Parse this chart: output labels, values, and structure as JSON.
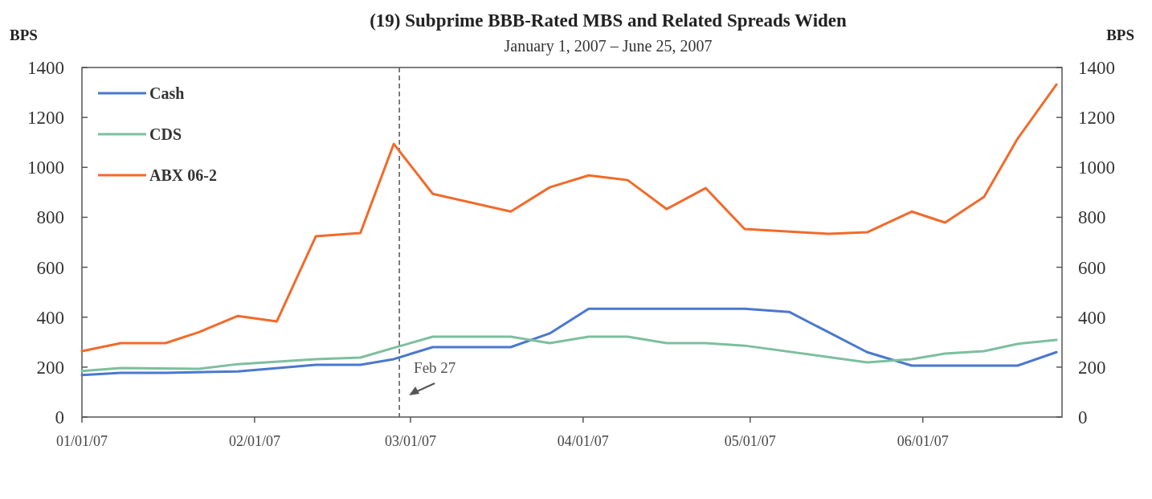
{
  "chart_data": {
    "type": "line",
    "title": "(19) Subprime BBB-Rated MBS and Related Spreads Widen",
    "subtitle": "January 1, 2007 – June 25, 2007",
    "ylabel": "BPS",
    "y2label": "BPS",
    "xlim": [
      "2007-01-01",
      "2007-06-26"
    ],
    "xticks": [
      {
        "value": "2007-01-01",
        "label": "01/01/07"
      },
      {
        "value": "2007-02-01",
        "label": "02/01/07"
      },
      {
        "value": "2007-03-01",
        "label": "03/01/07"
      },
      {
        "value": "2007-04-01",
        "label": "04/01/07"
      },
      {
        "value": "2007-05-01",
        "label": "05/01/07"
      },
      {
        "value": "2007-06-01",
        "label": "06/01/07"
      }
    ],
    "ylim": [
      0,
      1400
    ],
    "yticks": [
      0,
      200,
      400,
      600,
      800,
      1000,
      1200,
      1400
    ],
    "y2lim": [
      0,
      1400
    ],
    "y2ticks": [
      0,
      200,
      400,
      600,
      800,
      1000,
      1200,
      1400
    ],
    "legend": "top left",
    "grid": false,
    "line_style": "solid",
    "ref_lines": [
      {
        "axis": "x",
        "value": "2007-02-27",
        "label": "Feb 27",
        "line_style": "dashed",
        "color": "#555555"
      }
    ],
    "series": [
      {
        "name": "Cash",
        "color": "#4a78d0",
        "x": [
          "2007-01-01",
          "2007-01-08",
          "2007-01-16",
          "2007-01-29",
          "2007-02-12",
          "2007-02-20",
          "2007-02-26",
          "2007-03-05",
          "2007-03-19",
          "2007-03-26",
          "2007-04-02",
          "2007-04-30",
          "2007-05-08",
          "2007-05-22",
          "2007-05-30",
          "2007-06-18",
          "2007-06-25"
        ],
        "values": [
          168,
          177,
          177,
          183,
          209,
          209,
          232,
          280,
          280,
          335,
          434,
          434,
          421,
          260,
          206,
          206,
          260
        ]
      },
      {
        "name": "CDS",
        "color": "#7dbf9e",
        "x": [
          "2007-01-01",
          "2007-01-08",
          "2007-01-22",
          "2007-01-29",
          "2007-02-12",
          "2007-02-20",
          "2007-02-26",
          "2007-03-05",
          "2007-03-19",
          "2007-03-26",
          "2007-04-02",
          "2007-04-09",
          "2007-04-16",
          "2007-04-23",
          "2007-04-30",
          "2007-05-22",
          "2007-05-30",
          "2007-06-05",
          "2007-06-12",
          "2007-06-18",
          "2007-06-25"
        ],
        "values": [
          184,
          196,
          193,
          212,
          232,
          238,
          277,
          322,
          322,
          296,
          322,
          322,
          296,
          296,
          286,
          219,
          232,
          254,
          264,
          293,
          309
        ]
      },
      {
        "name": "ABX 06-2",
        "color": "#f26a2a",
        "x": [
          "2007-01-01",
          "2007-01-08",
          "2007-01-16",
          "2007-01-22",
          "2007-01-29",
          "2007-02-05",
          "2007-02-12",
          "2007-02-20",
          "2007-02-26",
          "2007-03-05",
          "2007-03-19",
          "2007-03-26",
          "2007-04-02",
          "2007-04-09",
          "2007-04-16",
          "2007-04-23",
          "2007-04-30",
          "2007-05-15",
          "2007-05-22",
          "2007-05-30",
          "2007-06-05",
          "2007-06-12",
          "2007-06-18",
          "2007-06-25"
        ],
        "values": [
          264,
          296,
          296,
          340,
          405,
          383,
          724,
          737,
          1094,
          894,
          823,
          920,
          968,
          949,
          833,
          917,
          753,
          734,
          740,
          823,
          779,
          882,
          1114,
          1332
        ]
      }
    ]
  }
}
